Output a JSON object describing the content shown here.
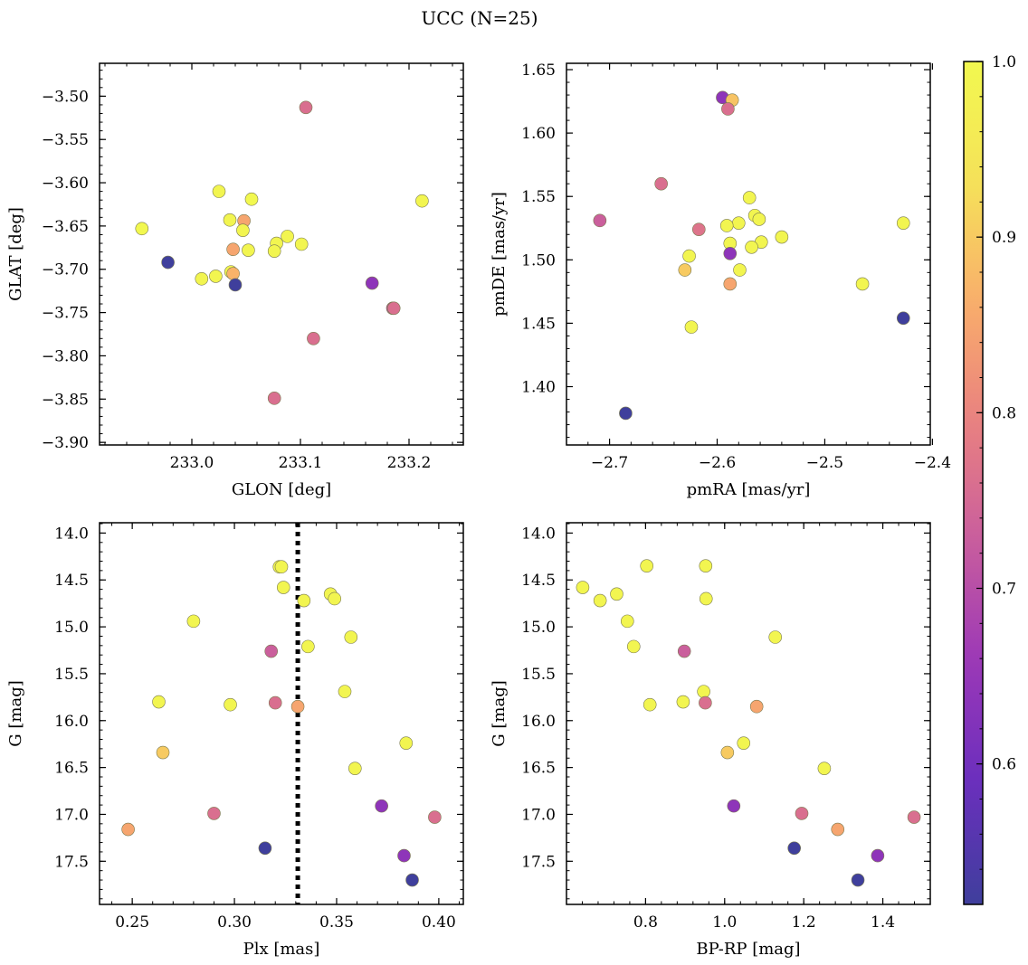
{
  "title": "UCC (N=25)",
  "colormap": {
    "name": "plasma",
    "stops": [
      "#3f3f9c",
      "#6a2fbd",
      "#9a37b7",
      "#c85d9e",
      "#e98080",
      "#f9ae6b",
      "#f5e259",
      "#f2f84f"
    ],
    "range": [
      0.52,
      1.0
    ],
    "ticks": [
      0.6,
      0.7,
      0.8,
      0.9,
      1.0
    ],
    "tick_labels": [
      "0.6",
      "0.7",
      "0.8",
      "0.9",
      "1.0"
    ]
  },
  "chart_data": [
    {
      "id": "glon-glat",
      "type": "scatter",
      "xlabel": "GLON [deg]",
      "ylabel": "GLAT [deg]",
      "xlim": [
        232.915,
        233.25
      ],
      "ylim": [
        -3.903,
        -3.462
      ],
      "xticks": [
        233.0,
        233.1,
        233.2
      ],
      "xtick_labels": [
        "233.0",
        "233.1",
        "233.2"
      ],
      "yticks": [
        -3.9,
        -3.85,
        -3.8,
        -3.75,
        -3.7,
        -3.65,
        -3.6,
        -3.55,
        -3.5
      ],
      "ytick_labels": [
        "−3.90",
        "−3.85",
        "−3.80",
        "−3.75",
        "−3.70",
        "−3.65",
        "−3.60",
        "−3.55",
        "−3.50"
      ],
      "points": [
        {
          "x": 233.105,
          "y": -3.513,
          "c": 0.76
        },
        {
          "x": 232.954,
          "y": -3.653,
          "c": 1.0
        },
        {
          "x": 233.025,
          "y": -3.61,
          "c": 0.99
        },
        {
          "x": 233.055,
          "y": -3.619,
          "c": 1.0
        },
        {
          "x": 233.212,
          "y": -3.621,
          "c": 0.99
        },
        {
          "x": 233.035,
          "y": -3.643,
          "c": 0.99
        },
        {
          "x": 233.048,
          "y": -3.644,
          "c": 0.85
        },
        {
          "x": 233.047,
          "y": -3.655,
          "c": 0.99
        },
        {
          "x": 233.088,
          "y": -3.662,
          "c": 0.99
        },
        {
          "x": 233.078,
          "y": -3.67,
          "c": 0.99
        },
        {
          "x": 233.101,
          "y": -3.671,
          "c": 0.99
        },
        {
          "x": 233.038,
          "y": -3.677,
          "c": 0.85
        },
        {
          "x": 233.052,
          "y": -3.678,
          "c": 0.99
        },
        {
          "x": 233.076,
          "y": -3.679,
          "c": 0.99
        },
        {
          "x": 232.978,
          "y": -3.692,
          "c": 0.52
        },
        {
          "x": 233.036,
          "y": -3.703,
          "c": 0.99
        },
        {
          "x": 233.038,
          "y": -3.705,
          "c": 0.87
        },
        {
          "x": 233.022,
          "y": -3.708,
          "c": 0.99
        },
        {
          "x": 233.009,
          "y": -3.711,
          "c": 0.99
        },
        {
          "x": 233.166,
          "y": -3.716,
          "c": 0.64
        },
        {
          "x": 233.04,
          "y": -3.718,
          "c": 0.52
        },
        {
          "x": 233.185,
          "y": -3.745,
          "c": 0.7
        },
        {
          "x": 233.186,
          "y": -3.745,
          "c": 0.76
        },
        {
          "x": 233.112,
          "y": -3.78,
          "c": 0.76
        },
        {
          "x": 233.076,
          "y": -3.849,
          "c": 0.76
        }
      ]
    },
    {
      "id": "pmra-pmde",
      "type": "scatter",
      "xlabel": "pmRA [mas/yr]",
      "ylabel": "pmDE [mas/yr]",
      "xlim": [
        -2.74,
        -2.402
      ],
      "ylim": [
        1.354,
        1.655
      ],
      "xticks": [
        -2.7,
        -2.6,
        -2.5,
        -2.4
      ],
      "xtick_labels": [
        "−2.7",
        "−2.6",
        "−2.5",
        "−2.4"
      ],
      "yticks": [
        1.4,
        1.45,
        1.5,
        1.55,
        1.6,
        1.65
      ],
      "ytick_labels": [
        "1.40",
        "1.45",
        "1.50",
        "1.55",
        "1.60",
        "1.65"
      ],
      "points": [
        {
          "x": -2.595,
          "y": 1.628,
          "c": 0.64
        },
        {
          "x": -2.586,
          "y": 1.626,
          "c": 0.89
        },
        {
          "x": -2.59,
          "y": 1.619,
          "c": 0.76
        },
        {
          "x": -2.652,
          "y": 1.56,
          "c": 0.76
        },
        {
          "x": -2.709,
          "y": 1.531,
          "c": 0.73
        },
        {
          "x": -2.57,
          "y": 1.549,
          "c": 0.99
        },
        {
          "x": -2.565,
          "y": 1.535,
          "c": 0.99
        },
        {
          "x": -2.561,
          "y": 1.532,
          "c": 0.99
        },
        {
          "x": -2.58,
          "y": 1.529,
          "c": 0.99
        },
        {
          "x": -2.591,
          "y": 1.527,
          "c": 0.99
        },
        {
          "x": -2.617,
          "y": 1.524,
          "c": 0.77
        },
        {
          "x": -2.427,
          "y": 1.529,
          "c": 0.99
        },
        {
          "x": -2.54,
          "y": 1.518,
          "c": 0.99
        },
        {
          "x": -2.559,
          "y": 1.514,
          "c": 0.99
        },
        {
          "x": -2.588,
          "y": 1.513,
          "c": 0.99
        },
        {
          "x": -2.568,
          "y": 1.51,
          "c": 0.99
        },
        {
          "x": -2.588,
          "y": 1.505,
          "c": 0.64
        },
        {
          "x": -2.626,
          "y": 1.503,
          "c": 0.99
        },
        {
          "x": -2.63,
          "y": 1.492,
          "c": 0.9
        },
        {
          "x": -2.579,
          "y": 1.492,
          "c": 0.99
        },
        {
          "x": -2.588,
          "y": 1.481,
          "c": 0.85
        },
        {
          "x": -2.465,
          "y": 1.481,
          "c": 0.99
        },
        {
          "x": -2.427,
          "y": 1.454,
          "c": 0.52
        },
        {
          "x": -2.624,
          "y": 1.447,
          "c": 0.99
        },
        {
          "x": -2.685,
          "y": 1.379,
          "c": 0.52
        }
      ]
    },
    {
      "id": "plx-g",
      "type": "scatter",
      "xlabel": "Plx [mas]",
      "ylabel": "G [mag]",
      "xlim": [
        0.234,
        0.412
      ],
      "ylim": [
        17.96,
        13.89
      ],
      "y_inverted": true,
      "vline": {
        "x": 0.331,
        "style": "dotted"
      },
      "xticks": [
        0.25,
        0.3,
        0.35,
        0.4
      ],
      "xtick_labels": [
        "0.25",
        "0.30",
        "0.35",
        "0.40"
      ],
      "yticks": [
        14.0,
        14.5,
        15.0,
        15.5,
        16.0,
        16.5,
        17.0,
        17.5
      ],
      "ytick_labels": [
        "14.0",
        "14.5",
        "15.0",
        "15.5",
        "16.0",
        "16.5",
        "17.0",
        "17.5"
      ],
      "points": [
        {
          "x": 0.322,
          "y": 14.36,
          "c": 0.99
        },
        {
          "x": 0.323,
          "y": 14.36,
          "c": 0.99
        },
        {
          "x": 0.324,
          "y": 14.58,
          "c": 0.99
        },
        {
          "x": 0.347,
          "y": 14.65,
          "c": 0.99
        },
        {
          "x": 0.334,
          "y": 14.72,
          "c": 0.99
        },
        {
          "x": 0.349,
          "y": 14.7,
          "c": 0.99
        },
        {
          "x": 0.28,
          "y": 14.94,
          "c": 0.99
        },
        {
          "x": 0.357,
          "y": 15.11,
          "c": 0.99
        },
        {
          "x": 0.336,
          "y": 15.21,
          "c": 0.99
        },
        {
          "x": 0.318,
          "y": 15.26,
          "c": 0.73
        },
        {
          "x": 0.354,
          "y": 15.69,
          "c": 0.99
        },
        {
          "x": 0.263,
          "y": 15.8,
          "c": 0.99
        },
        {
          "x": 0.298,
          "y": 15.83,
          "c": 0.99
        },
        {
          "x": 0.32,
          "y": 15.81,
          "c": 0.76
        },
        {
          "x": 0.331,
          "y": 15.85,
          "c": 0.85
        },
        {
          "x": 0.384,
          "y": 16.24,
          "c": 0.99
        },
        {
          "x": 0.265,
          "y": 16.34,
          "c": 0.9
        },
        {
          "x": 0.359,
          "y": 16.51,
          "c": 0.99
        },
        {
          "x": 0.372,
          "y": 16.91,
          "c": 0.64
        },
        {
          "x": 0.29,
          "y": 16.99,
          "c": 0.76
        },
        {
          "x": 0.398,
          "y": 17.03,
          "c": 0.76
        },
        {
          "x": 0.248,
          "y": 17.16,
          "c": 0.85
        },
        {
          "x": 0.315,
          "y": 17.36,
          "c": 0.52
        },
        {
          "x": 0.383,
          "y": 17.44,
          "c": 0.64
        },
        {
          "x": 0.387,
          "y": 17.7,
          "c": 0.52
        }
      ]
    },
    {
      "id": "bprp-g",
      "type": "scatter",
      "xlabel": "BP-RP [mag]",
      "ylabel": "G [mag]",
      "xlim": [
        0.6,
        1.52
      ],
      "ylim": [
        17.96,
        13.89
      ],
      "y_inverted": true,
      "xticks": [
        0.8,
        1.0,
        1.2,
        1.4
      ],
      "xtick_labels": [
        "0.8",
        "1.0",
        "1.2",
        "1.4"
      ],
      "yticks": [
        14.0,
        14.5,
        15.0,
        15.5,
        16.0,
        16.5,
        17.0,
        17.5
      ],
      "ytick_labels": [
        "14.0",
        "14.5",
        "15.0",
        "15.5",
        "16.0",
        "16.5",
        "17.0",
        "17.5"
      ],
      "points": [
        {
          "x": 0.803,
          "y": 14.35,
          "c": 0.99
        },
        {
          "x": 0.952,
          "y": 14.35,
          "c": 0.99
        },
        {
          "x": 0.641,
          "y": 14.58,
          "c": 0.99
        },
        {
          "x": 0.727,
          "y": 14.65,
          "c": 0.99
        },
        {
          "x": 0.685,
          "y": 14.72,
          "c": 0.99
        },
        {
          "x": 0.953,
          "y": 14.7,
          "c": 0.99
        },
        {
          "x": 0.754,
          "y": 14.94,
          "c": 0.99
        },
        {
          "x": 1.128,
          "y": 15.11,
          "c": 0.99
        },
        {
          "x": 0.77,
          "y": 15.21,
          "c": 0.99
        },
        {
          "x": 0.898,
          "y": 15.26,
          "c": 0.73
        },
        {
          "x": 0.947,
          "y": 15.69,
          "c": 0.99
        },
        {
          "x": 0.895,
          "y": 15.8,
          "c": 0.99
        },
        {
          "x": 0.811,
          "y": 15.83,
          "c": 0.99
        },
        {
          "x": 0.951,
          "y": 15.81,
          "c": 0.76
        },
        {
          "x": 1.081,
          "y": 15.85,
          "c": 0.85
        },
        {
          "x": 1.048,
          "y": 16.24,
          "c": 0.99
        },
        {
          "x": 1.007,
          "y": 16.34,
          "c": 0.9
        },
        {
          "x": 1.252,
          "y": 16.51,
          "c": 0.99
        },
        {
          "x": 1.023,
          "y": 16.91,
          "c": 0.64
        },
        {
          "x": 1.195,
          "y": 16.99,
          "c": 0.76
        },
        {
          "x": 1.479,
          "y": 17.03,
          "c": 0.76
        },
        {
          "x": 1.286,
          "y": 17.16,
          "c": 0.85
        },
        {
          "x": 1.176,
          "y": 17.36,
          "c": 0.52
        },
        {
          "x": 1.387,
          "y": 17.44,
          "c": 0.64
        },
        {
          "x": 1.337,
          "y": 17.7,
          "c": 0.52
        }
      ]
    }
  ]
}
